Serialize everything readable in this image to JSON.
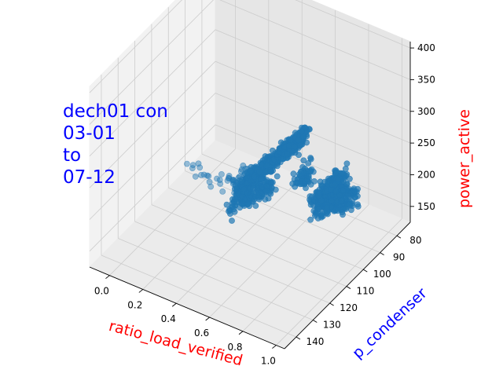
{
  "chart_data": {
    "type": "scatter",
    "projection": "3d",
    "title_lines": [
      "dech01 con",
      "03-01",
      "to",
      "07-12"
    ],
    "xlabel": "ratio_load_verified",
    "ylabel": "p_condenser",
    "zlabel": "power_active",
    "xlim": [
      -0.12,
      1.05
    ],
    "ylim": [
      72,
      147
    ],
    "zlim": [
      125,
      410
    ],
    "xticks": [
      "0.0",
      "0.2",
      "0.4",
      "0.6",
      "0.8",
      "1.0"
    ],
    "yticks": [
      "80",
      "90",
      "100",
      "110",
      "120",
      "130",
      "140"
    ],
    "zticks": [
      "150",
      "200",
      "250",
      "300",
      "350",
      "400"
    ],
    "grid": true,
    "colors": {
      "points": "#1f77b4",
      "title": "#0000ff",
      "xlabel": "#ff0000",
      "ylabel": "#0000ff",
      "zlabel": "#ff0000",
      "pane": "#f2f2f2",
      "grid": "#cccccc"
    },
    "clusters": [
      {
        "from": [
          -0.1,
          90,
          135
        ],
        "to": [
          0.05,
          92,
          145
        ],
        "n": 10,
        "alpha": 0.45,
        "spread": [
          0.01,
          2,
          5
        ]
      },
      {
        "from": [
          0.1,
          95,
          155
        ],
        "to": [
          0.3,
          99,
          175
        ],
        "n": 16,
        "alpha": 0.45,
        "spread": [
          0.015,
          2,
          6
        ]
      },
      {
        "from": [
          0.3,
          103,
          190
        ],
        "to": [
          0.42,
          108,
          230
        ],
        "n": 18,
        "alpha": 0.5,
        "spread": [
          0.015,
          2,
          7
        ]
      },
      {
        "from": [
          0.4,
          110,
          205
        ],
        "to": [
          0.98,
          128,
          405
        ],
        "n": 560,
        "alpha": 0.7,
        "spread": [
          0.012,
          2,
          6
        ]
      },
      {
        "from": [
          0.45,
          118,
          210
        ],
        "to": [
          0.8,
          130,
          310
        ],
        "n": 160,
        "alpha": 0.7,
        "spread": [
          0.012,
          2,
          6
        ]
      },
      {
        "from": [
          0.55,
          78,
          128
        ],
        "to": [
          0.95,
          98,
          215
        ],
        "n": 260,
        "alpha": 0.7,
        "spread": [
          0.015,
          3,
          8
        ]
      },
      {
        "from": [
          0.7,
          90,
          165
        ],
        "to": [
          1.0,
          110,
          285
        ],
        "n": 280,
        "alpha": 0.7,
        "spread": [
          0.015,
          3,
          10
        ]
      },
      {
        "from": [
          0.85,
          115,
          290
        ],
        "to": [
          1.0,
          130,
          350
        ],
        "n": 60,
        "alpha": 0.7,
        "spread": [
          0.015,
          2,
          8
        ]
      }
    ]
  }
}
